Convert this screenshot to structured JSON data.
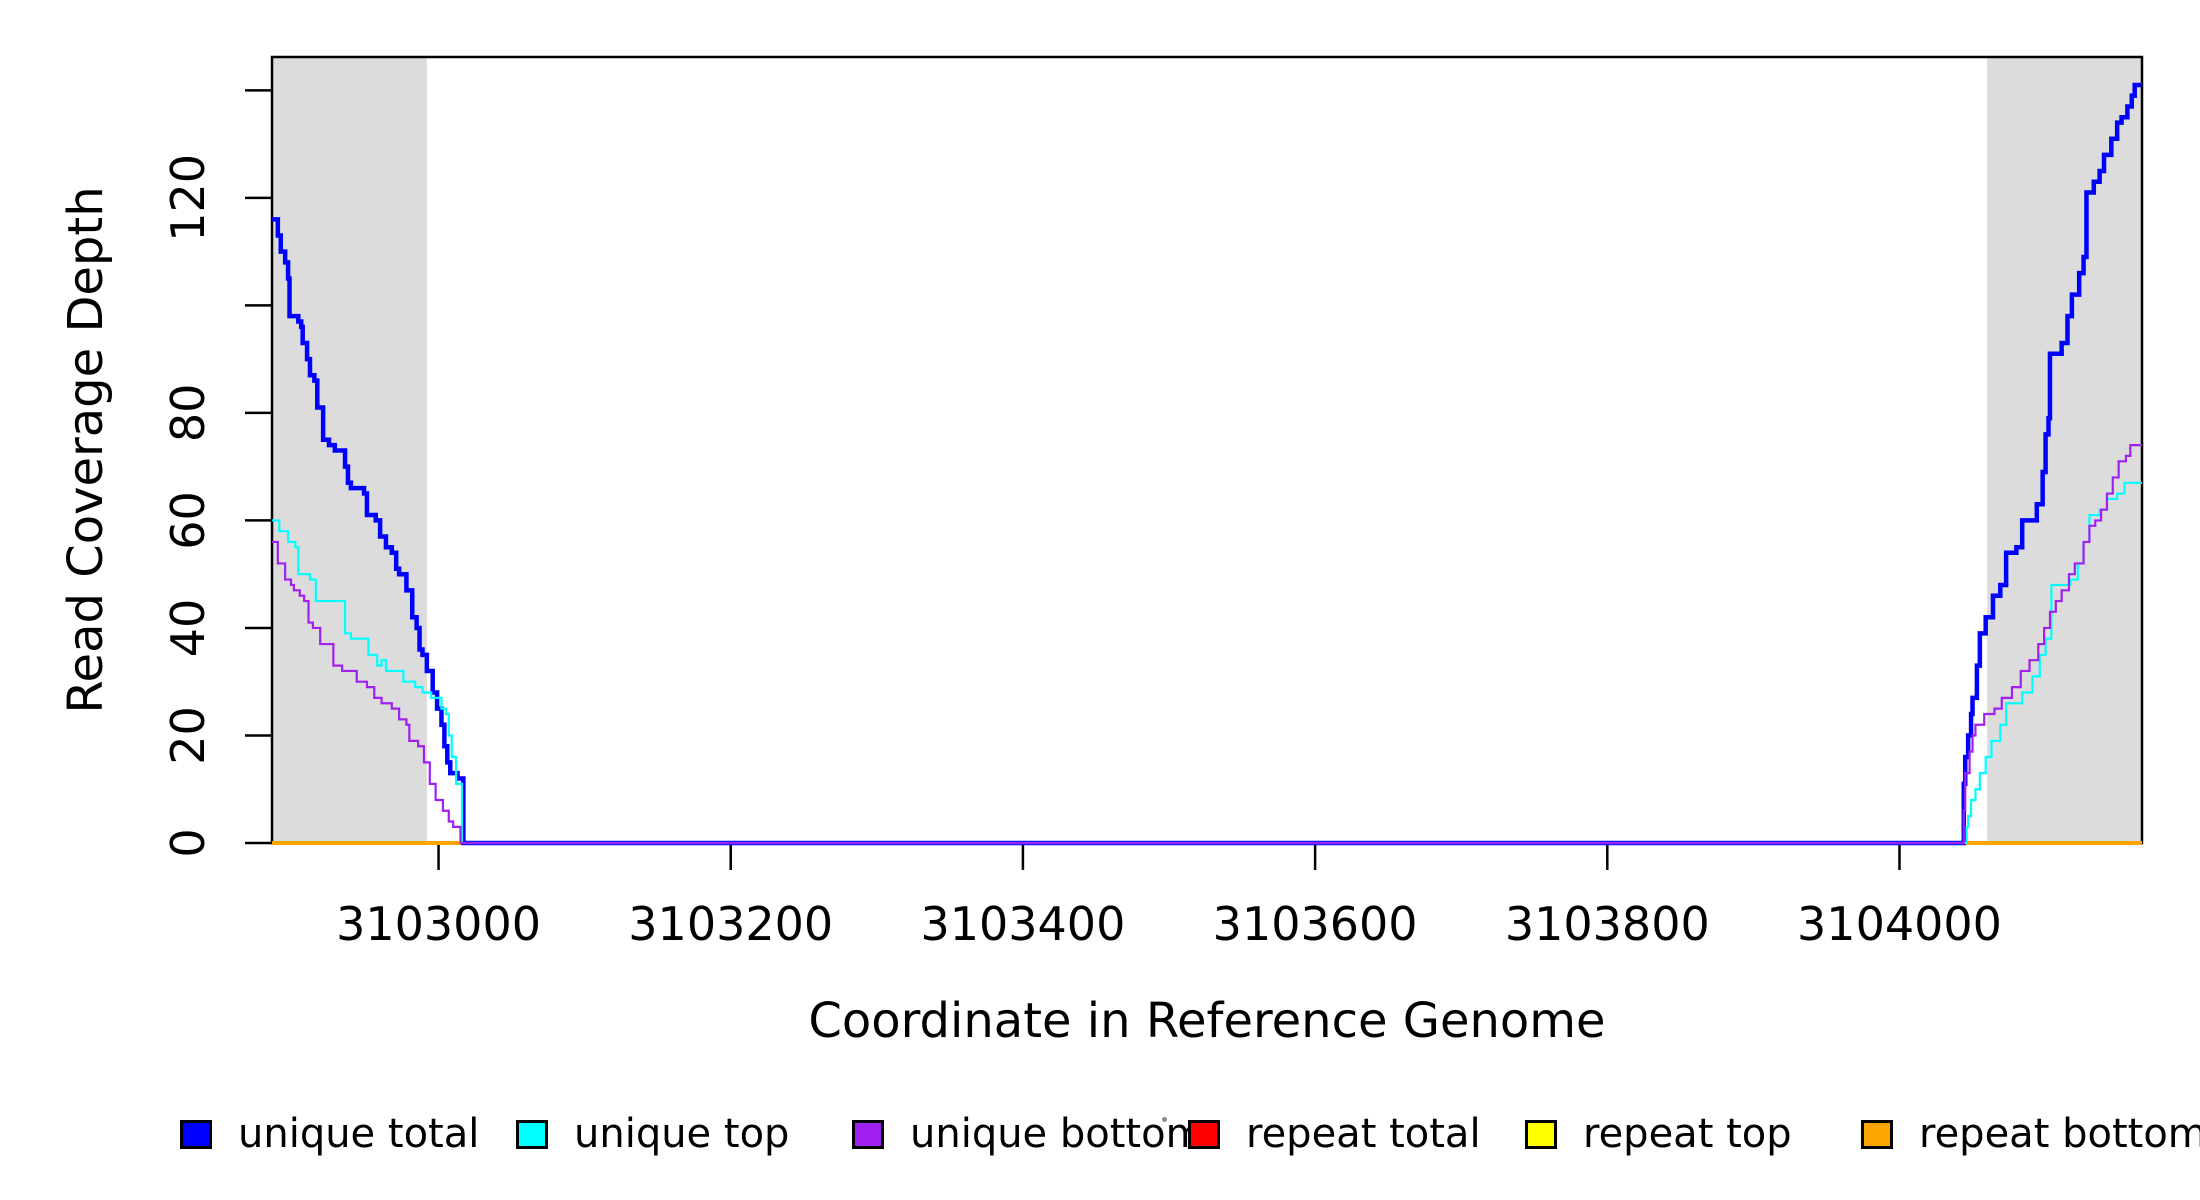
{
  "chart_data": {
    "type": "line",
    "subtype": "step",
    "title": "",
    "xlabel": "Coordinate in Reference Genome",
    "ylabel": "Read Coverage Depth",
    "xlim": [
      3102886,
      3104166
    ],
    "ylim": [
      0,
      146.2
    ],
    "grid": false,
    "background_color": "#FFFFFF",
    "shaded_region_color": "#DCDCDC",
    "axis_color": "#000000",
    "x_ticks": [
      3103000,
      3103200,
      3103400,
      3103600,
      3103800,
      3104000
    ],
    "y_ticks": [
      0,
      20,
      40,
      60,
      80,
      100,
      120,
      140
    ],
    "y_tick_labels": [
      "0",
      "20",
      "40",
      "60",
      "80",
      "",
      "120",
      ""
    ],
    "shaded_regions": [
      {
        "x0": 3102886,
        "x1": 3102992
      },
      {
        "x0": 3104060,
        "x1": 3104166
      }
    ],
    "series": [
      {
        "name": "repeat total",
        "color": "#FF0000",
        "width": 2,
        "segments": [
          [
            [
              3102886,
              0
            ],
            [
              3103017,
              0
            ]
          ],
          [
            [
              3104044,
              0
            ],
            [
              3104166,
              0
            ]
          ]
        ]
      },
      {
        "name": "repeat top",
        "color": "#FFFF00",
        "width": 2,
        "segments": [
          [
            [
              3102886,
              0
            ],
            [
              3103017,
              0
            ]
          ],
          [
            [
              3104044,
              0
            ],
            [
              3104166,
              0
            ]
          ]
        ]
      },
      {
        "name": "repeat bottom",
        "color": "#FFA500",
        "width": 4,
        "segments": [
          [
            [
              3102886,
              0
            ],
            [
              3103017,
              0
            ]
          ],
          [
            [
              3104044,
              0
            ],
            [
              3104166,
              0
            ]
          ]
        ]
      },
      {
        "name": "unique total",
        "color": "#0000FF",
        "width": 4.5,
        "segments": [
          [
            [
              3102886,
              116
            ],
            [
              3102890,
              113
            ],
            [
              3102892,
              110
            ],
            [
              3102895,
              108
            ],
            [
              3102897,
              105
            ],
            [
              3102898,
              98
            ],
            [
              3102904,
              97
            ],
            [
              3102906,
              96
            ],
            [
              3102907,
              93
            ],
            [
              3102910,
              90
            ],
            [
              3102912,
              87
            ],
            [
              3102915,
              86
            ],
            [
              3102917,
              81
            ],
            [
              3102921,
              75
            ],
            [
              3102925,
              74
            ],
            [
              3102929,
              73
            ],
            [
              3102936,
              70
            ],
            [
              3102938,
              67
            ],
            [
              3102940,
              66
            ],
            [
              3102949,
              65
            ],
            [
              3102951,
              61
            ],
            [
              3102957,
              60
            ],
            [
              3102960,
              57
            ],
            [
              3102964,
              55
            ],
            [
              3102968,
              54
            ],
            [
              3102971,
              51
            ],
            [
              3102973,
              50
            ],
            [
              3102978,
              47
            ],
            [
              3102982,
              42
            ],
            [
              3102985,
              40
            ],
            [
              3102987,
              36
            ],
            [
              3102989,
              35
            ],
            [
              3102992,
              32
            ],
            [
              3102996,
              28
            ],
            [
              3102999,
              25
            ],
            [
              3103002,
              22
            ],
            [
              3103004,
              18
            ],
            [
              3103006,
              15
            ],
            [
              3103008,
              13
            ],
            [
              3103013,
              12
            ],
            [
              3103017,
              0
            ],
            [
              3104044,
              11
            ],
            [
              3104045,
              16
            ],
            [
              3104047,
              20
            ],
            [
              3104049,
              24
            ],
            [
              3104050,
              27
            ],
            [
              3104053,
              33
            ],
            [
              3104055,
              39
            ],
            [
              3104059,
              42
            ],
            [
              3104064,
              46
            ],
            [
              3104069,
              48
            ],
            [
              3104073,
              54
            ],
            [
              3104080,
              55
            ],
            [
              3104084,
              60
            ],
            [
              3104094,
              63
            ],
            [
              3104098,
              69
            ],
            [
              3104100,
              76
            ],
            [
              3104102,
              79
            ],
            [
              3104103,
              91
            ],
            [
              3104111,
              93
            ],
            [
              3104115,
              98
            ],
            [
              3104118,
              102
            ],
            [
              3104123,
              106
            ],
            [
              3104126,
              109
            ],
            [
              3104128,
              121
            ],
            [
              3104133,
              123
            ],
            [
              3104137,
              125
            ],
            [
              3104140,
              128
            ],
            [
              3104145,
              131
            ],
            [
              3104149,
              134
            ],
            [
              3104152,
              135
            ],
            [
              3104156,
              137
            ],
            [
              3104159,
              139
            ],
            [
              3104161,
              141
            ],
            [
              3104166,
              141
            ]
          ]
        ]
      },
      {
        "name": "unique top",
        "color": "#00FFFF",
        "width": 2.2,
        "segments": [
          [
            [
              3102886,
              60
            ],
            [
              3102891,
              58
            ],
            [
              3102897,
              56
            ],
            [
              3102902,
              55
            ],
            [
              3102904,
              50
            ],
            [
              3102912,
              49
            ],
            [
              3102916,
              45
            ],
            [
              3102936,
              39
            ],
            [
              3102940,
              38
            ],
            [
              3102952,
              35
            ],
            [
              3102958,
              33
            ],
            [
              3102961,
              34
            ],
            [
              3102964,
              32
            ],
            [
              3102976,
              30
            ],
            [
              3102984,
              29
            ],
            [
              3102989,
              28
            ],
            [
              3102995,
              27
            ],
            [
              3103002,
              25
            ],
            [
              3103005,
              24
            ],
            [
              3103007,
              20
            ],
            [
              3103009,
              16
            ],
            [
              3103012,
              11
            ],
            [
              3103016,
              0
            ],
            [
              3104046,
              3
            ],
            [
              3104047,
              5
            ],
            [
              3104049,
              8
            ],
            [
              3104052,
              10
            ],
            [
              3104055,
              13
            ],
            [
              3104059,
              16
            ],
            [
              3104063,
              19
            ],
            [
              3104069,
              22
            ],
            [
              3104073,
              26
            ],
            [
              3104084,
              28
            ],
            [
              3104091,
              31
            ],
            [
              3104096,
              35
            ],
            [
              3104100,
              38
            ],
            [
              3104104,
              48
            ],
            [
              3104117,
              49
            ],
            [
              3104122,
              52
            ],
            [
              3104126,
              56
            ],
            [
              3104130,
              61
            ],
            [
              3104137,
              62
            ],
            [
              3104142,
              64
            ],
            [
              3104149,
              65
            ],
            [
              3104154,
              67
            ],
            [
              3104166,
              67
            ]
          ]
        ]
      },
      {
        "name": "unique bottom",
        "color": "#A020F0",
        "width": 2.2,
        "segments": [
          [
            [
              3102886,
              56
            ],
            [
              3102890,
              52
            ],
            [
              3102895,
              49
            ],
            [
              3102899,
              48
            ],
            [
              3102901,
              47
            ],
            [
              3102905,
              46
            ],
            [
              3102908,
              45
            ],
            [
              3102911,
              41
            ],
            [
              3102914,
              40
            ],
            [
              3102919,
              37
            ],
            [
              3102928,
              33
            ],
            [
              3102934,
              32
            ],
            [
              3102944,
              30
            ],
            [
              3102951,
              29
            ],
            [
              3102956,
              27
            ],
            [
              3102961,
              26
            ],
            [
              3102968,
              25
            ],
            [
              3102973,
              23
            ],
            [
              3102978,
              22
            ],
            [
              3102980,
              19
            ],
            [
              3102986,
              18
            ],
            [
              3102990,
              15
            ],
            [
              3102994,
              11
            ],
            [
              3102998,
              8
            ],
            [
              3103003,
              6
            ],
            [
              3103007,
              4
            ],
            [
              3103010,
              3
            ],
            [
              3103015,
              0
            ],
            [
              3104044,
              6
            ],
            [
              3104045,
              13
            ],
            [
              3104048,
              17
            ],
            [
              3104050,
              20
            ],
            [
              3104052,
              22
            ],
            [
              3104058,
              24
            ],
            [
              3104065,
              25
            ],
            [
              3104070,
              27
            ],
            [
              3104077,
              29
            ],
            [
              3104083,
              32
            ],
            [
              3104089,
              34
            ],
            [
              3104095,
              37
            ],
            [
              3104099,
              40
            ],
            [
              3104103,
              43
            ],
            [
              3104107,
              45
            ],
            [
              3104111,
              47
            ],
            [
              3104116,
              50
            ],
            [
              3104120,
              52
            ],
            [
              3104126,
              56
            ],
            [
              3104130,
              59
            ],
            [
              3104134,
              60
            ],
            [
              3104138,
              62
            ],
            [
              3104142,
              65
            ],
            [
              3104146,
              68
            ],
            [
              3104150,
              71
            ],
            [
              3104155,
              72
            ],
            [
              3104158,
              74
            ],
            [
              3104166,
              74
            ]
          ]
        ]
      }
    ],
    "legend": {
      "position": "bottom",
      "entries": [
        {
          "label": "unique total",
          "color": "#0000FF"
        },
        {
          "label": "unique top",
          "color": "#00FFFF"
        },
        {
          "label": "unique bottom",
          "color": "#A020F0"
        },
        {
          "label": "repeat total",
          "color": "#FF0000"
        },
        {
          "label": "repeat top",
          "color": "#FFFF00"
        },
        {
          "label": "repeat bottom",
          "color": "#FFA500"
        }
      ]
    }
  }
}
